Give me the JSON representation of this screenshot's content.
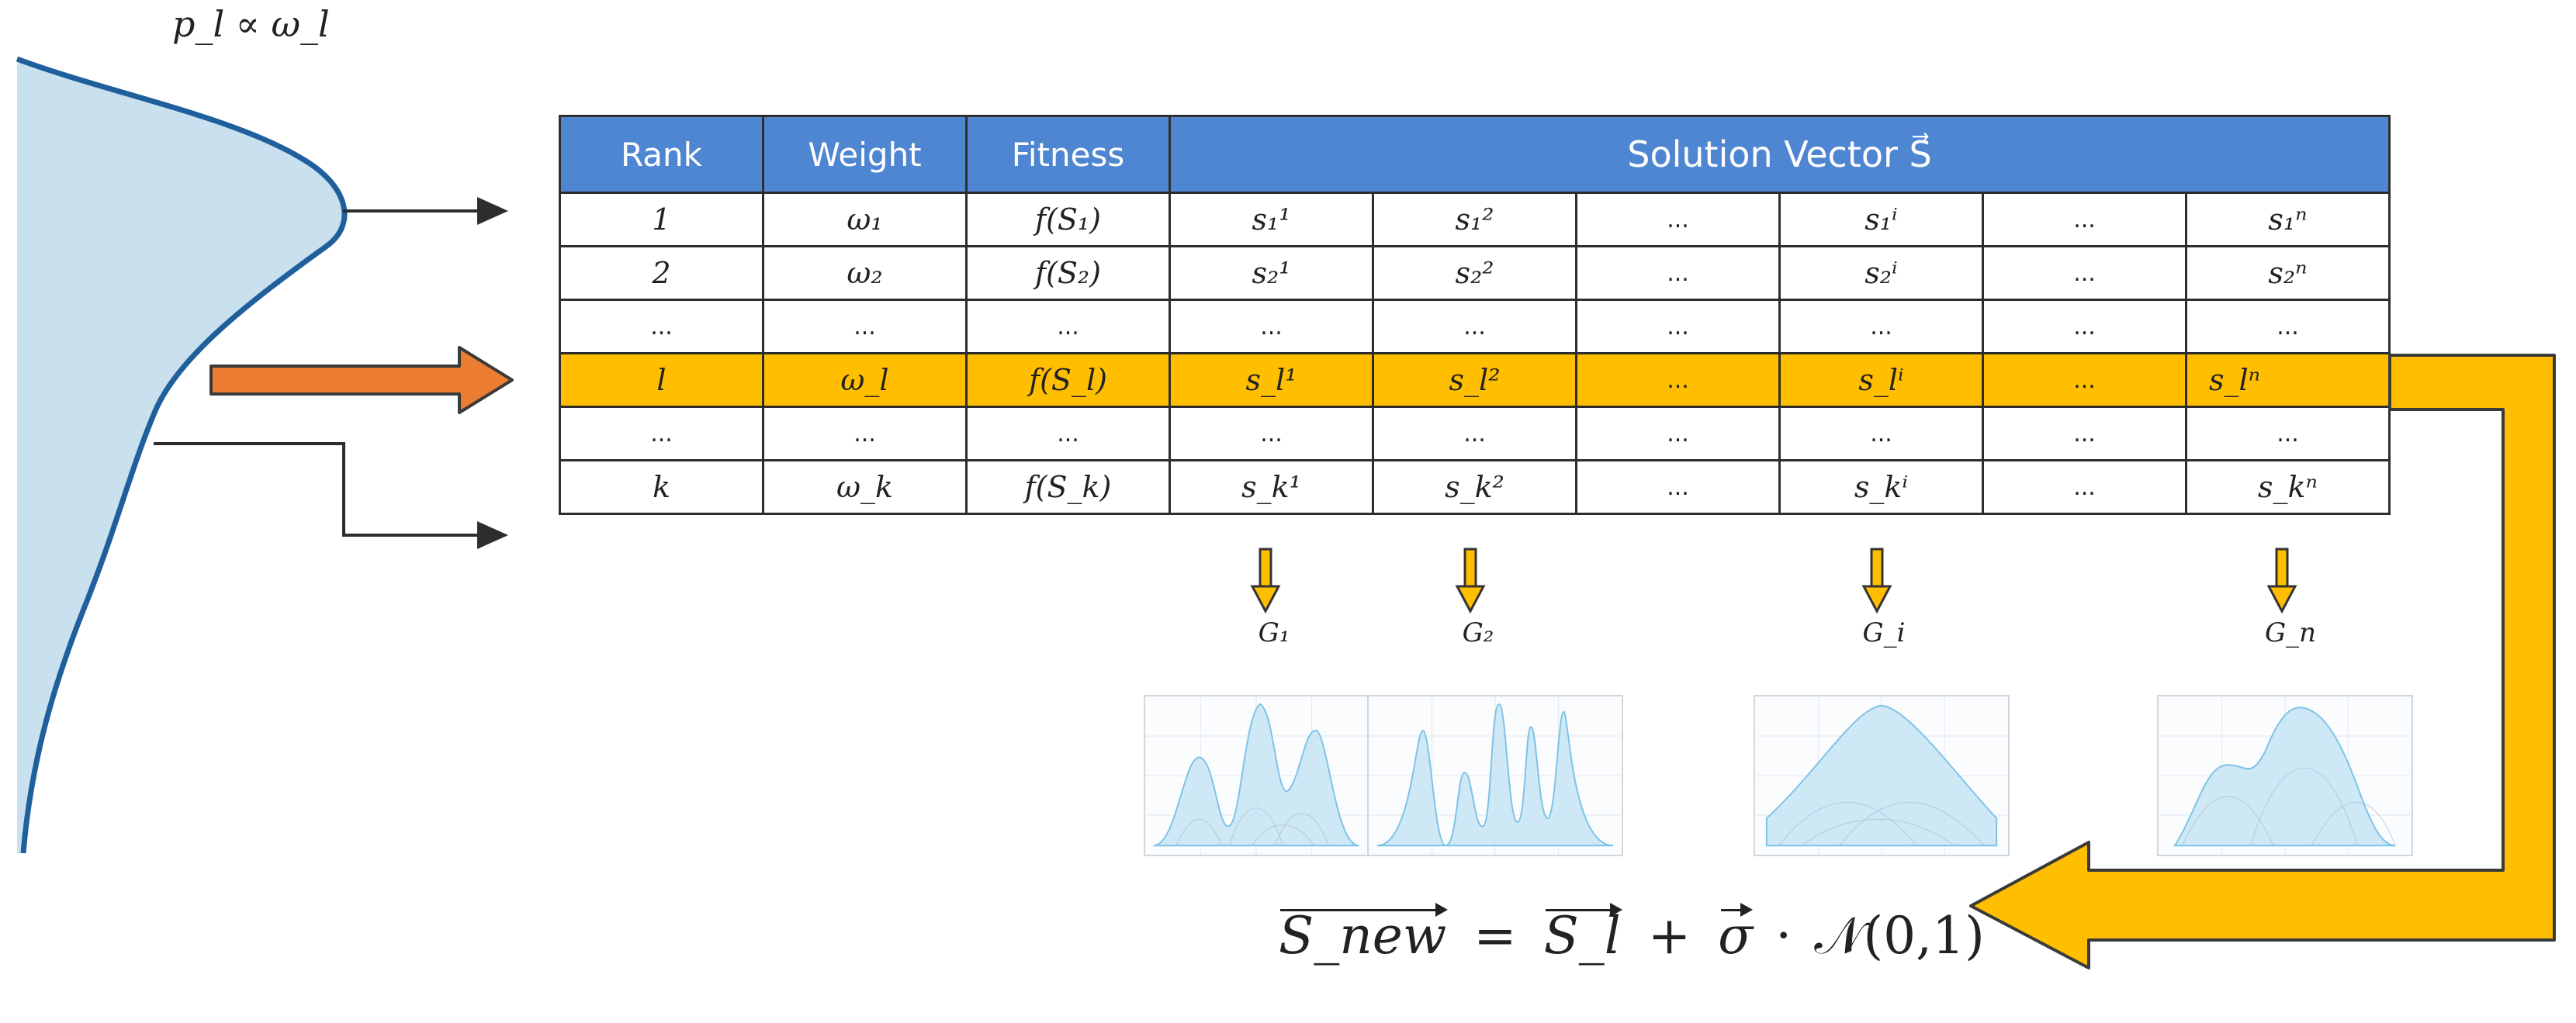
{
  "prob_label": "p_l ∝ ω_l",
  "table": {
    "headers": [
      "Rank",
      "Weight",
      "Fitness",
      "Solution Vector S⃗"
    ],
    "rows": [
      {
        "rank": "1",
        "weight": "ω₁",
        "fitness": "f(S₁)",
        "s1": "s₁¹",
        "s2": "s₁²",
        "d1": "...",
        "si": "s₁ⁱ",
        "d2": "...",
        "sn": "s₁ⁿ",
        "highlight": false
      },
      {
        "rank": "2",
        "weight": "ω₂",
        "fitness": "f(S₂)",
        "s1": "s₂¹",
        "s2": "s₂²",
        "d1": "...",
        "si": "s₂ⁱ",
        "d2": "...",
        "sn": "s₂ⁿ",
        "highlight": false
      },
      {
        "rank": "...",
        "weight": "...",
        "fitness": "...",
        "s1": "...",
        "s2": "...",
        "d1": "...",
        "si": "...",
        "d2": "...",
        "sn": "...",
        "highlight": false
      },
      {
        "rank": "l",
        "weight": "ω_l",
        "fitness": "f(S_l)",
        "s1": "s_l¹",
        "s2": "s_l²",
        "d1": "...",
        "si": "s_lⁱ",
        "d2": "...",
        "sn": "s_lⁿ",
        "highlight": true
      },
      {
        "rank": "...",
        "weight": "...",
        "fitness": "...",
        "s1": "...",
        "s2": "...",
        "d1": "...",
        "si": "...",
        "d2": "...",
        "sn": "...",
        "highlight": false
      },
      {
        "rank": "k",
        "weight": "ω_k",
        "fitness": "f(S_k)",
        "s1": "s_k¹",
        "s2": "s_k²",
        "d1": "...",
        "si": "s_kⁱ",
        "d2": "...",
        "sn": "s_kⁿ",
        "highlight": false
      }
    ]
  },
  "gaussians": [
    "G₁",
    "G₂",
    "G_i",
    "G_n"
  ],
  "formula": {
    "lhs": "S_new",
    "equals": "=",
    "term1": "S_l",
    "plus": "+",
    "sigma": "σ",
    "dot": "·",
    "normal": "𝒩(0,1)"
  },
  "colors": {
    "header_blue": "#4f86d1",
    "highlight_amber": "#ffbf00",
    "curve_fill": "#c9e0ef",
    "curve_stroke": "#1f5f9c",
    "select_arrow": "#ed7d31"
  }
}
